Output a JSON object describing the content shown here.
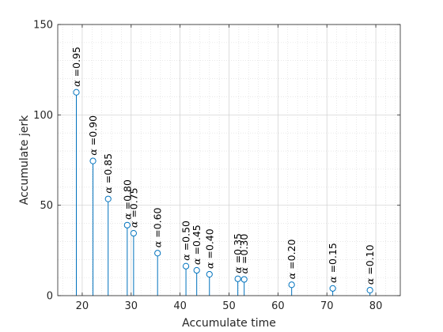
{
  "chart_data": {
    "type": "stem",
    "xlabel": "Accumulate time",
    "ylabel": "Accumulate jerk",
    "xlim": [
      15,
      85
    ],
    "ylim": [
      0,
      150
    ],
    "xticks": [
      20,
      30,
      40,
      50,
      60,
      70,
      80
    ],
    "yticks": [
      0,
      50,
      100,
      150
    ],
    "grid": "major and minor, dotted",
    "colors": {
      "stem": "#0072bd",
      "axes": "#262626",
      "grid": "#d9d9d9"
    },
    "annotation_symbol": "α",
    "points": [
      {
        "x": 18.8,
        "y": 112.5,
        "label": " =0.95"
      },
      {
        "x": 22.2,
        "y": 74.5,
        "label": " =0.90"
      },
      {
        "x": 25.3,
        "y": 53.5,
        "label": " =0.85"
      },
      {
        "x": 29.2,
        "y": 39.0,
        "label": " =0.80"
      },
      {
        "x": 30.5,
        "y": 34.5,
        "label": " =0.75"
      },
      {
        "x": 35.4,
        "y": 23.5,
        "label": " =0.60"
      },
      {
        "x": 41.2,
        "y": 16.3,
        "label": " =0.50"
      },
      {
        "x": 43.4,
        "y": 14.0,
        "label": " =0.45"
      },
      {
        "x": 46.0,
        "y": 11.8,
        "label": " =0.40"
      },
      {
        "x": 51.8,
        "y": 9.3,
        "label": " =0.35"
      },
      {
        "x": 53.1,
        "y": 9.0,
        "label": " =0.30"
      },
      {
        "x": 62.8,
        "y": 6.0,
        "label": " =0.20"
      },
      {
        "x": 71.2,
        "y": 4.0,
        "label": " =0.15"
      },
      {
        "x": 78.8,
        "y": 3.0,
        "label": " =0.10"
      }
    ]
  }
}
